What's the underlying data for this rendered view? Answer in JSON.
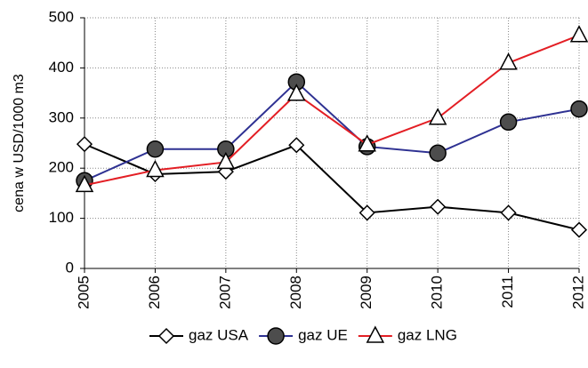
{
  "chart_data": {
    "type": "line",
    "y_label": "cena w USD/1000 m3",
    "categories": [
      "2005",
      "2006",
      "2007",
      "2008",
      "2009",
      "2010",
      "2011",
      "2012"
    ],
    "series": [
      {
        "name": "gaz USA",
        "color": "#000000",
        "marker": "diamond",
        "marker_fill": "#ffffff",
        "values": [
          248,
          188,
          193,
          246,
          111,
          123,
          111,
          77
        ]
      },
      {
        "name": "gaz UE",
        "color": "#2e3192",
        "marker": "circle",
        "marker_fill": "#4d4d4d",
        "values": [
          175,
          238,
          238,
          372,
          243,
          230,
          292,
          318
        ]
      },
      {
        "name": "gaz LNG",
        "color": "#e31e24",
        "marker": "triangle",
        "marker_fill": "#ffffff",
        "values": [
          166,
          196,
          212,
          348,
          247,
          300,
          410,
          465
        ]
      }
    ],
    "ylim": [
      0,
      500
    ],
    "yticks": [
      0,
      100,
      200,
      300,
      400,
      500
    ],
    "grid": true,
    "legend": "bottom"
  }
}
